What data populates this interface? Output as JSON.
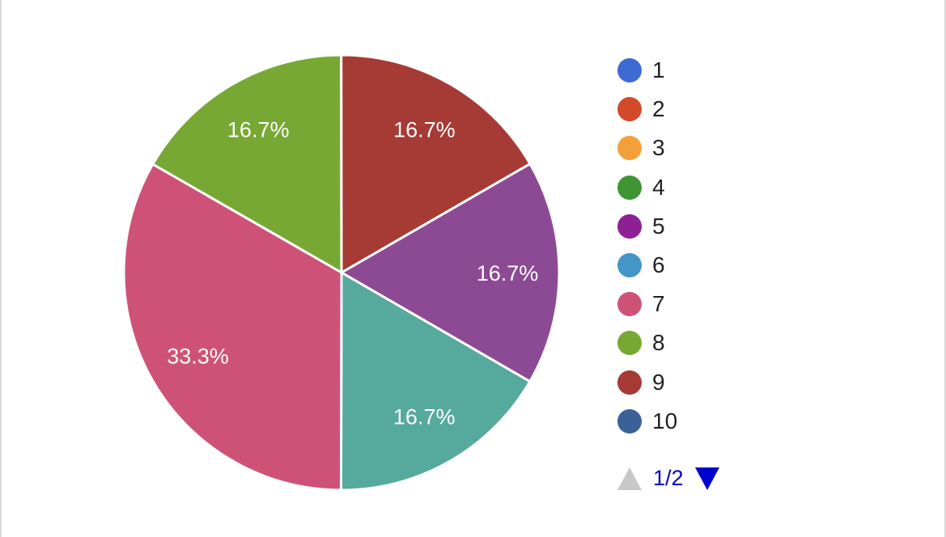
{
  "chart_data": {
    "type": "pie",
    "slices": [
      {
        "label": "1",
        "value": 0,
        "color": "#3e6ad3"
      },
      {
        "label": "2",
        "value": 0,
        "color": "#d24a2a"
      },
      {
        "label": "3",
        "value": 0,
        "color": "#f4a03a"
      },
      {
        "label": "4",
        "value": 0,
        "color": "#3f9533"
      },
      {
        "label": "5",
        "value": 16.7,
        "color": "#8c4a94",
        "display": "16.7%"
      },
      {
        "label": "6",
        "value": 16.7,
        "color": "#56a99d",
        "display": "16.7%"
      },
      {
        "label": "7",
        "value": 33.3,
        "color": "#ce5278",
        "display": "33.3%"
      },
      {
        "label": "8",
        "value": 16.7,
        "color": "#78a834",
        "display": "16.7%"
      },
      {
        "label": "9",
        "value": 16.7,
        "color": "#a63a34",
        "display": "16.7%"
      },
      {
        "label": "10",
        "value": 0,
        "color": "#3a6298"
      }
    ],
    "legend_position": "right",
    "start_angle_deg": -30
  },
  "legend": {
    "items": [
      {
        "label": "1",
        "color": "#3e6ad3"
      },
      {
        "label": "2",
        "color": "#d24a2a"
      },
      {
        "label": "3",
        "color": "#f4a03a"
      },
      {
        "label": "4",
        "color": "#3f9533"
      },
      {
        "label": "5",
        "color": "#8e1f95"
      },
      {
        "label": "6",
        "color": "#4496c6"
      },
      {
        "label": "7",
        "color": "#ce5278"
      },
      {
        "label": "8",
        "color": "#78a834"
      },
      {
        "label": "9",
        "color": "#a63a34"
      },
      {
        "label": "10",
        "color": "#3a6298"
      }
    ],
    "page_indicator": "1/2",
    "prev_icon": "triangle-up-icon",
    "next_icon": "triangle-down-icon"
  }
}
